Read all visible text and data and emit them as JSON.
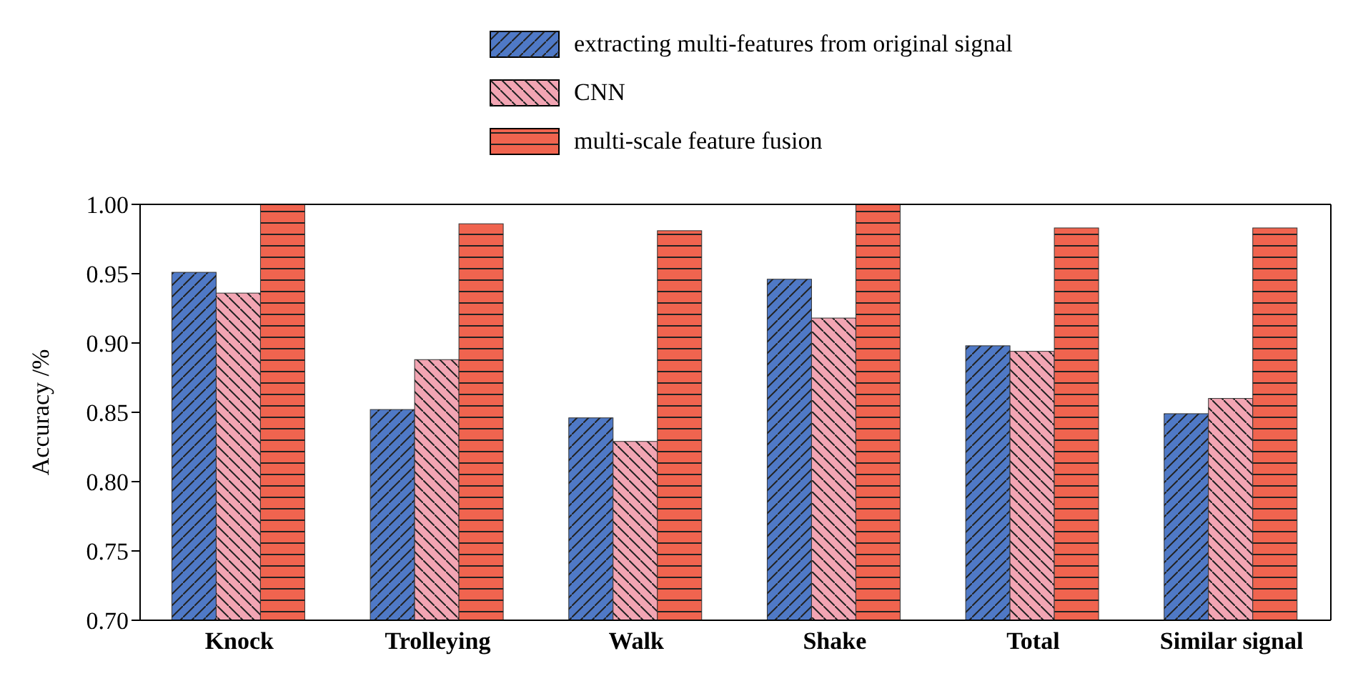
{
  "chart_data": {
    "type": "bar",
    "ylabel": "Accuracy /%",
    "categories": [
      "Knock",
      "Trolleying",
      "Walk",
      "Shake",
      "Total",
      "Similar signal"
    ],
    "series": [
      {
        "name": "extracting multi-features from original signal",
        "color": "#4f79c6",
        "values": [
          0.951,
          0.852,
          0.846,
          0.946,
          0.898,
          0.849
        ]
      },
      {
        "name": "CNN",
        "color": "#f2a5b3",
        "values": [
          0.936,
          0.888,
          0.829,
          0.918,
          0.894,
          0.86
        ]
      },
      {
        "name": "multi-scale feature fusion",
        "color": "#f0644f",
        "values": [
          1.0,
          0.986,
          0.981,
          1.0,
          0.983,
          0.983
        ]
      }
    ],
    "ylim": [
      0.7,
      1.0
    ],
    "yticks": [
      {
        "value": 0.7,
        "label": "0.70"
      },
      {
        "value": 0.75,
        "label": "0.75"
      },
      {
        "value": 0.8,
        "label": "0.80"
      },
      {
        "value": 0.85,
        "label": "0.85"
      },
      {
        "value": 0.9,
        "label": "0.90"
      },
      {
        "value": 0.95,
        "label": "0.95"
      },
      {
        "value": 1.0,
        "label": "1.00"
      }
    ],
    "grid": false,
    "legend": "top"
  }
}
